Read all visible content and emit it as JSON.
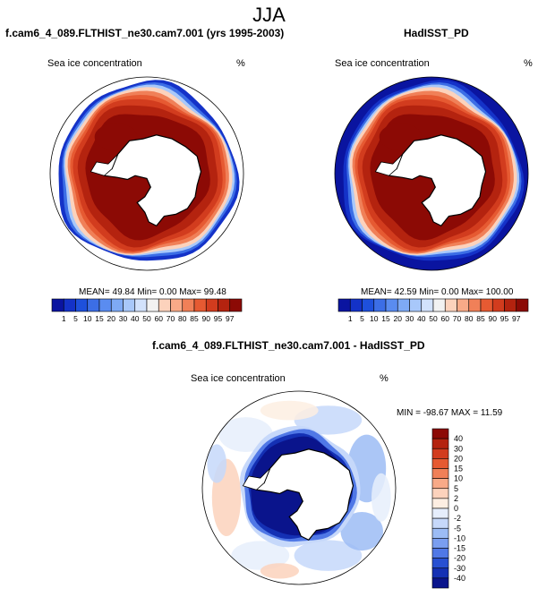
{
  "main_title": "JJA",
  "panels": {
    "left": {
      "title": "f.cam6_4_089.FLTHIST_ne30.cam7.001 (yrs 1995-2003)",
      "subtitle": "Sea ice concentration",
      "units": "%",
      "stats": "MEAN=  49.84  Min=   0.00  Max=  99.48"
    },
    "right": {
      "title": "HadISST_PD",
      "subtitle": "Sea ice concentration",
      "units": "%",
      "stats": "MEAN=  42.59  Min=   0.00  Max= 100.00"
    },
    "diff": {
      "title": "f.cam6_4_089.FLTHIST_ne30.cam7.001 - HadISST_PD",
      "subtitle": "Sea ice concentration",
      "units": "%",
      "stats": "MIN = -98.67 MAX =  11.59"
    }
  },
  "chart_data": [
    {
      "type": "heatmap",
      "projection": "south-polar-stereographic",
      "title": "f.cam6_4_089.FLTHIST_ne30.cam7.001 (yrs 1995-2003)",
      "variable": "Sea ice concentration",
      "units": "%",
      "mean": 49.84,
      "min": 0.0,
      "max": 99.48,
      "colorbar_levels": [
        "1",
        "5",
        "10",
        "15",
        "20",
        "30",
        "40",
        "50",
        "60",
        "70",
        "80",
        "85",
        "90",
        "95",
        "97"
      ],
      "colorbar_colors": [
        "#0a14a0",
        "#1432c8",
        "#1e50dc",
        "#3c6ee6",
        "#5a8cf0",
        "#7eaaf5",
        "#a8c8fa",
        "#d2e2fc",
        "#f2f2f2",
        "#fcd2bc",
        "#f8aa88",
        "#f08058",
        "#e65a32",
        "#d23c1e",
        "#b4230f",
        "#8c0a05"
      ],
      "ocean_color": "#ffffff"
    },
    {
      "type": "heatmap",
      "projection": "south-polar-stereographic",
      "title": "HadISST_PD",
      "variable": "Sea ice concentration",
      "units": "%",
      "mean": 42.59,
      "min": 0.0,
      "max": 100.0,
      "colorbar_levels": [
        "1",
        "5",
        "10",
        "15",
        "20",
        "30",
        "40",
        "50",
        "60",
        "70",
        "80",
        "85",
        "90",
        "95",
        "97"
      ],
      "colorbar_colors": [
        "#0a14a0",
        "#1432c8",
        "#1e50dc",
        "#3c6ee6",
        "#5a8cf0",
        "#7eaaf5",
        "#a8c8fa",
        "#d2e2fc",
        "#f2f2f2",
        "#fcd2bc",
        "#f8aa88",
        "#f08058",
        "#e65a32",
        "#d23c1e",
        "#b4230f",
        "#8c0a05"
      ],
      "ocean_color": "#0a14a0"
    },
    {
      "type": "heatmap",
      "projection": "south-polar-stereographic",
      "title": "f.cam6_4_089.FLTHIST_ne30.cam7.001 - HadISST_PD",
      "variable": "Sea ice concentration",
      "units": "%",
      "min": -98.67,
      "max": 11.59,
      "colorbar_levels": [
        "40",
        "30",
        "20",
        "15",
        "10",
        "5",
        "2",
        "0",
        "-2",
        "-5",
        "-10",
        "-15",
        "-20",
        "-30",
        "-40"
      ],
      "colorbar_colors": [
        "#8c0a05",
        "#b4230f",
        "#d23c1e",
        "#e65a32",
        "#f08058",
        "#f8aa88",
        "#fcd2bc",
        "#fdeee2",
        "#e6eefc",
        "#c6d8fa",
        "#9cbcf5",
        "#7a9ef0",
        "#5078e6",
        "#2850d2",
        "#1430b4",
        "#0a148c"
      ]
    }
  ]
}
